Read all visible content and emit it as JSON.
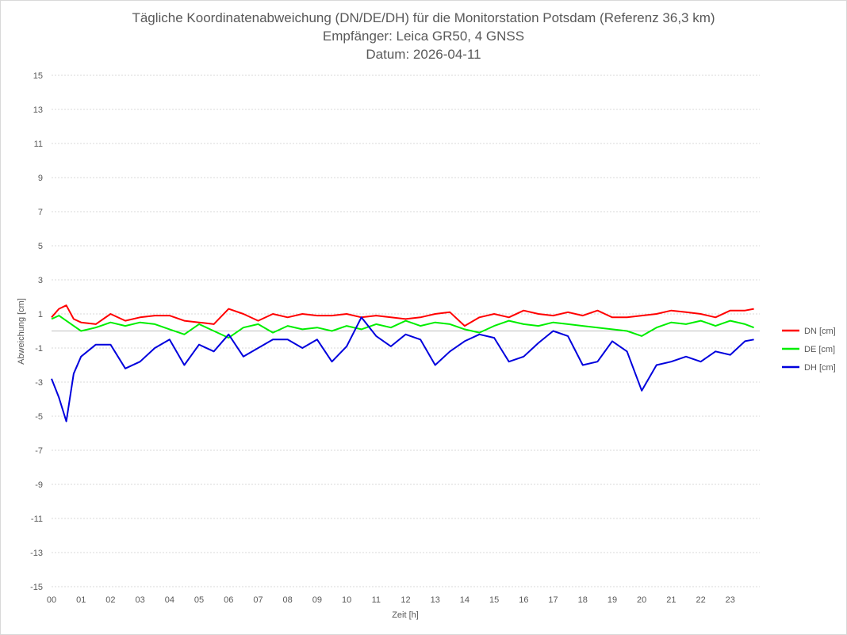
{
  "chart_data": {
    "type": "line",
    "title": "Tägliche Koordinatenabweichung (DN/DE/DH) für die Monitorstation Potsdam (Referenz 36,3 km)",
    "subtitle": "Empfänger: Leica GR50, 4 GNSS",
    "date_line": "Datum: 2026-04-11",
    "xlabel": "Zeit [h]",
    "ylabel": "Abweichung [cm]",
    "ylim": [
      -15,
      15
    ],
    "yticks": [
      "15",
      "13",
      "11",
      "9",
      "7",
      "5",
      "3",
      "1",
      "-1",
      "-3",
      "-5",
      "-7",
      "-9",
      "-11",
      "-13",
      "-15"
    ],
    "xlim": [
      0,
      24
    ],
    "xticks": [
      "00",
      "01",
      "02",
      "03",
      "04",
      "05",
      "06",
      "07",
      "08",
      "09",
      "10",
      "11",
      "12",
      "13",
      "14",
      "15",
      "16",
      "17",
      "18",
      "19",
      "20",
      "21",
      "22",
      "23"
    ],
    "grid": true,
    "legend_position": "right",
    "series": [
      {
        "name": "DN [cm]",
        "color": "#ff0000",
        "x": [
          0,
          0.25,
          0.5,
          0.75,
          1,
          1.5,
          2,
          2.5,
          3,
          3.5,
          4,
          4.5,
          5,
          5.5,
          6,
          6.5,
          7,
          7.5,
          8,
          8.5,
          9,
          9.5,
          10,
          10.5,
          11,
          11.5,
          12,
          12.5,
          13,
          13.5,
          14,
          14.5,
          15,
          15.5,
          16,
          16.5,
          17,
          17.5,
          18,
          18.5,
          19,
          19.5,
          20,
          20.5,
          21,
          21.5,
          22,
          22.5,
          23,
          23.5,
          23.8
        ],
        "values": [
          0.8,
          1.3,
          1.5,
          0.7,
          0.5,
          0.4,
          1.0,
          0.6,
          0.8,
          0.9,
          0.9,
          0.6,
          0.5,
          0.4,
          1.3,
          1.0,
          0.6,
          1.0,
          0.8,
          1.0,
          0.9,
          0.9,
          1.0,
          0.8,
          0.9,
          0.8,
          0.7,
          0.8,
          1.0,
          1.1,
          0.3,
          0.8,
          1.0,
          0.8,
          1.2,
          1.0,
          0.9,
          1.1,
          0.9,
          1.2,
          0.8,
          0.8,
          0.9,
          1.0,
          1.2,
          1.1,
          1.0,
          0.8,
          1.2,
          1.2,
          1.3
        ]
      },
      {
        "name": "DE [cm]",
        "color": "#00ee00",
        "x": [
          0,
          0.25,
          0.5,
          0.75,
          1,
          1.5,
          2,
          2.5,
          3,
          3.5,
          4,
          4.5,
          5,
          5.5,
          6,
          6.5,
          7,
          7.5,
          8,
          8.5,
          9,
          9.5,
          10,
          10.5,
          11,
          11.5,
          12,
          12.5,
          13,
          13.5,
          14,
          14.5,
          15,
          15.5,
          16,
          16.5,
          17,
          17.5,
          18,
          18.5,
          19,
          19.5,
          20,
          20.5,
          21,
          21.5,
          22,
          22.5,
          23,
          23.5,
          23.8
        ],
        "values": [
          0.7,
          0.9,
          0.6,
          0.3,
          0.0,
          0.2,
          0.5,
          0.3,
          0.5,
          0.4,
          0.1,
          -0.2,
          0.4,
          0.0,
          -0.4,
          0.2,
          0.4,
          -0.1,
          0.3,
          0.1,
          0.2,
          0.0,
          0.3,
          0.1,
          0.4,
          0.2,
          0.6,
          0.3,
          0.5,
          0.4,
          0.1,
          -0.1,
          0.3,
          0.6,
          0.4,
          0.3,
          0.5,
          0.4,
          0.3,
          0.2,
          0.1,
          0.0,
          -0.3,
          0.2,
          0.5,
          0.4,
          0.6,
          0.3,
          0.6,
          0.4,
          0.2
        ]
      },
      {
        "name": "DH [cm]",
        "color": "#0000dd",
        "x": [
          0,
          0.25,
          0.5,
          0.75,
          1,
          1.5,
          2,
          2.5,
          3,
          3.5,
          4,
          4.5,
          5,
          5.5,
          6,
          6.5,
          7,
          7.5,
          8,
          8.5,
          9,
          9.5,
          10,
          10.5,
          11,
          11.5,
          12,
          12.5,
          13,
          13.5,
          14,
          14.5,
          15,
          15.5,
          16,
          16.5,
          17,
          17.5,
          18,
          18.5,
          19,
          19.5,
          20,
          20.5,
          21,
          21.5,
          22,
          22.5,
          23,
          23.5,
          23.8
        ],
        "values": [
          -2.8,
          -3.9,
          -5.3,
          -2.5,
          -1.5,
          -0.8,
          -0.8,
          -2.2,
          -1.8,
          -1.0,
          -0.5,
          -2.0,
          -0.8,
          -1.2,
          -0.2,
          -1.5,
          -1.0,
          -0.5,
          -0.5,
          -1.0,
          -0.5,
          -1.8,
          -0.9,
          0.8,
          -0.3,
          -0.9,
          -0.2,
          -0.5,
          -2.0,
          -1.2,
          -0.6,
          -0.2,
          -0.4,
          -1.8,
          -1.5,
          -0.7,
          0.0,
          -0.3,
          -2.0,
          -1.8,
          -0.6,
          -1.2,
          -3.5,
          -2.0,
          -1.8,
          -1.5,
          -1.8,
          -1.2,
          -1.4,
          -0.6,
          -0.5
        ]
      }
    ]
  }
}
